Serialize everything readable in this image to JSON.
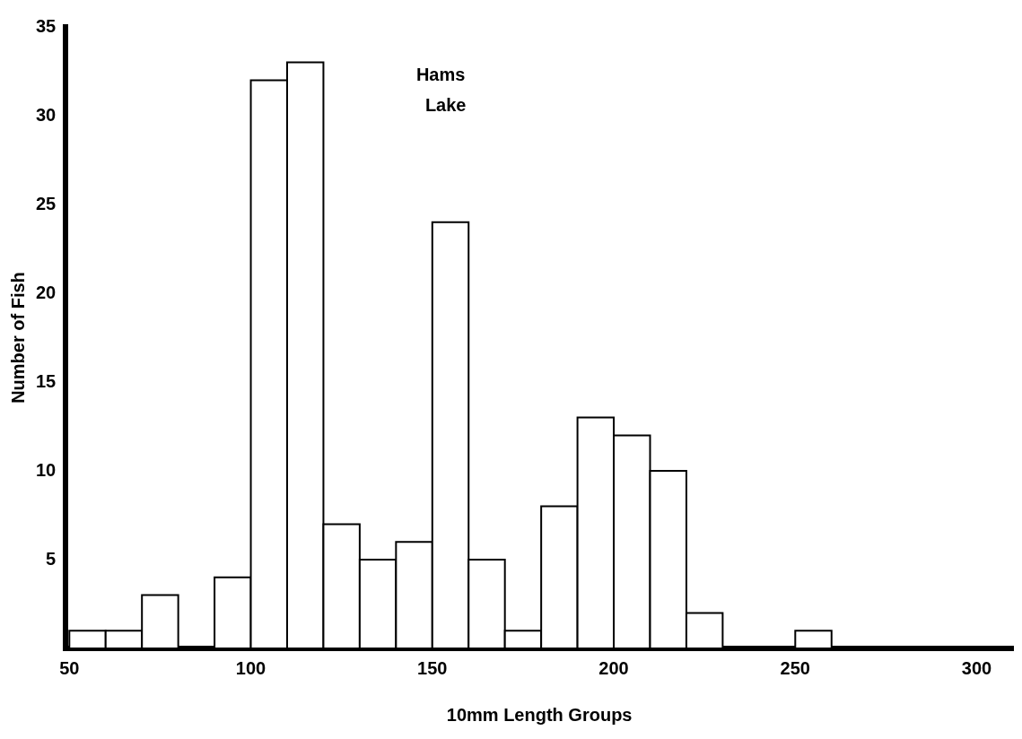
{
  "chart_data": {
    "type": "histogram",
    "xlabel": "10mm Length Groups",
    "ylabel": "Number of Fish",
    "annotations": [
      "Hams Lake"
    ],
    "bins": [
      50,
      60,
      70,
      80,
      90,
      100,
      110,
      120,
      130,
      140,
      150,
      160,
      170,
      180,
      190,
      200,
      210,
      220,
      230,
      240,
      250,
      260
    ],
    "values": [
      1,
      1,
      3,
      0,
      4,
      32,
      33,
      7,
      5,
      6,
      24,
      5,
      1,
      8,
      13,
      12,
      10,
      2,
      0,
      0,
      1
    ],
    "color": "#000000",
    "xlim": [
      49,
      310
    ],
    "xticks": [
      50,
      100,
      150,
      200,
      250,
      300
    ],
    "ylim": [
      0,
      35
    ],
    "yticks": [
      5,
      10,
      15,
      20,
      25,
      30,
      35
    ],
    "grid": false,
    "legend": false
  }
}
